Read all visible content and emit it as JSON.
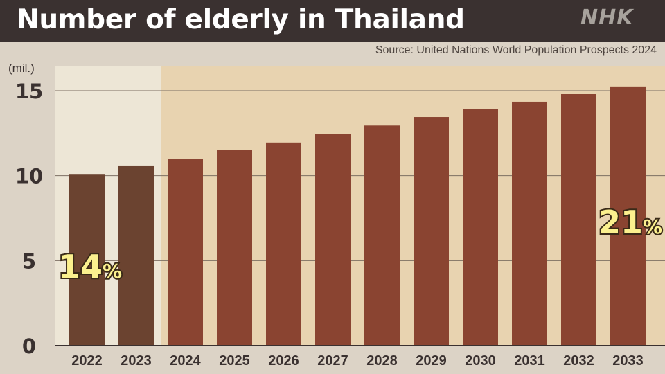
{
  "header": {
    "title": "Number of elderly in Thailand",
    "logo": "NHK"
  },
  "source": "Source: United Nations World Population Prospects 2024",
  "colors": {
    "header_bg": "#3a3130",
    "page_bg": "#dcd3c6",
    "past_region": "#ede6d6",
    "projection_region": "#e8d3b0",
    "past_bar": "#6b4330",
    "projection_bar": "#8a4431",
    "highlight": "#fbf08e"
  },
  "chart_data": {
    "type": "bar",
    "ylabel": "(mil.)",
    "ylim": [
      0,
      16.5
    ],
    "yticks": [
      "0",
      "5",
      "10",
      "15"
    ],
    "grid": true,
    "categories": [
      "2022",
      "2023",
      "2024",
      "2025",
      "2026",
      "2027",
      "2028",
      "2029",
      "2030",
      "2031",
      "2032",
      "2033"
    ],
    "values": [
      10.1,
      10.6,
      11.0,
      11.5,
      11.95,
      12.45,
      12.95,
      13.45,
      13.9,
      14.35,
      14.8,
      15.25
    ],
    "annotations": [
      {
        "text": "14%",
        "category": "2022"
      },
      {
        "text": "21%",
        "category": "2033"
      }
    ]
  }
}
